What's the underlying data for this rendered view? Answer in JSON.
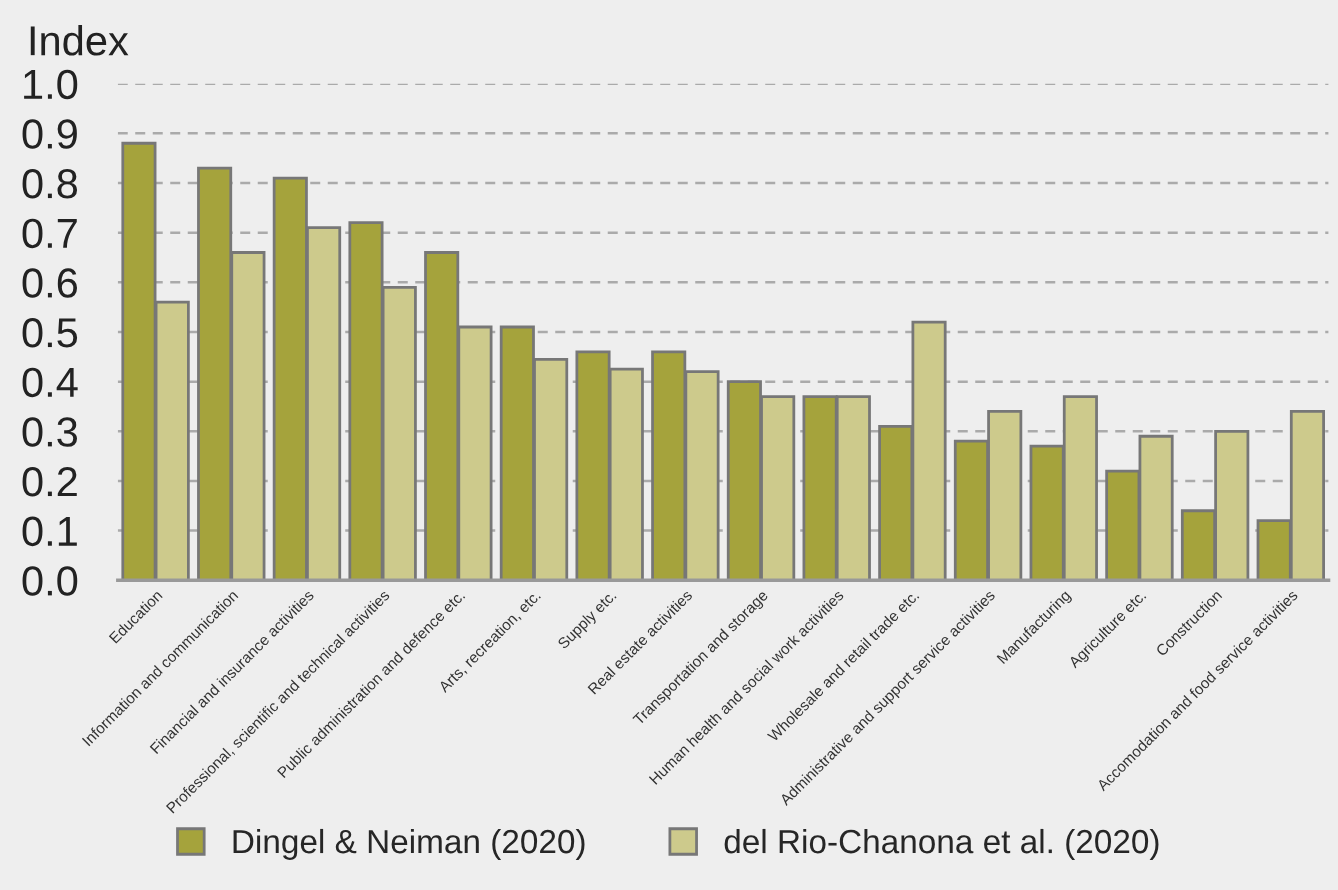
{
  "chart_data": {
    "type": "bar",
    "ylabel": "Index",
    "categories": [
      "Education",
      "Information and communication",
      "Financial and insurance activities",
      "Professional, scientific and technical activities",
      "Public administration and defence etc.",
      "Arts, recreation, etc.",
      "Supply etc.",
      "Real estate activities",
      "Transportation and storage",
      "Human health and social work activities",
      "Wholesale and retail trade etc.",
      "Administrative and support service activities",
      "Manufacturing",
      "Agriculture etc.",
      "Construction",
      "Accomodation and food service activities"
    ],
    "series": [
      {
        "name": "Dingel & Neiman (2020)",
        "color": "#a5a33c",
        "values": [
          0.88,
          0.83,
          0.81,
          0.72,
          0.66,
          0.51,
          0.46,
          0.46,
          0.4,
          0.37,
          0.31,
          0.28,
          0.27,
          0.22,
          0.14,
          0.12
        ]
      },
      {
        "name": "del Rio-Chanona et al. (2020)",
        "color": "#cdca8c",
        "values": [
          0.56,
          0.66,
          0.71,
          0.59,
          0.51,
          0.445,
          0.425,
          0.42,
          0.37,
          0.37,
          0.52,
          0.34,
          0.37,
          0.29,
          0.3,
          0.34
        ]
      }
    ],
    "ylim": [
      0,
      1.0
    ],
    "yticks": [
      {
        "value": 0,
        "label": "0.0"
      },
      0.1,
      0.2,
      0.3,
      0.4,
      0.5,
      0.6,
      0.7,
      0.8,
      0.9,
      {
        "value": 1.0,
        "label": "1.0"
      }
    ],
    "grid": "y",
    "legend": "bottom"
  }
}
